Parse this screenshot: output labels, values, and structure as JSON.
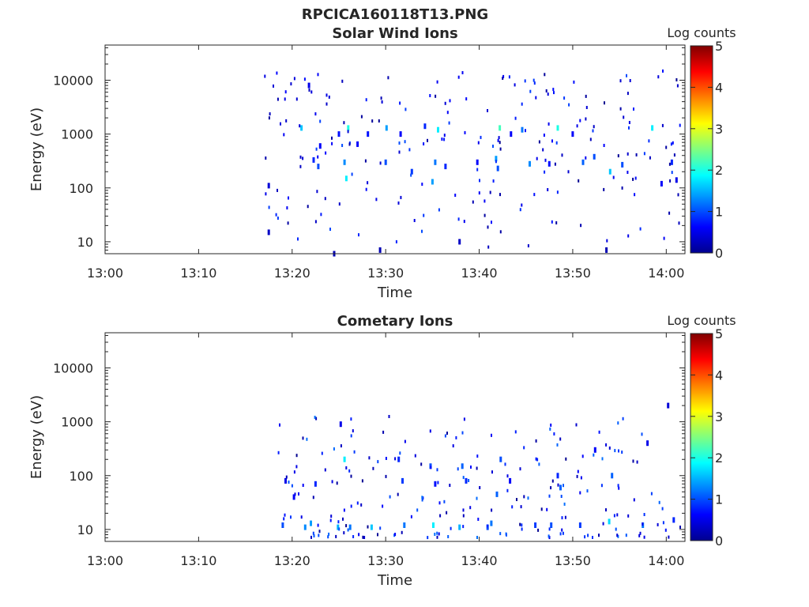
{
  "figure_title": "RPCICA160118T13.PNG",
  "colors": {
    "axis": "#262626",
    "colormap": [
      "#00008f",
      "#0000ff",
      "#00ffff",
      "#ffff00",
      "#ff0000",
      "#800000"
    ]
  },
  "chart_data": [
    {
      "type": "heatmap",
      "title": "Solar Wind Ions",
      "xlabel": "Time",
      "ylabel": "Energy (eV)",
      "colorbar_label": "Log counts",
      "x_range": [
        "13:00",
        "14:02"
      ],
      "y_scale": "log",
      "ylim": [
        6,
        45000
      ],
      "x_ticks": [
        "13:00",
        "13:10",
        "13:20",
        "13:30",
        "13:40",
        "13:50",
        "14:00"
      ],
      "y_ticks": [
        10,
        100,
        1000,
        10000
      ],
      "y_tick_labels": [
        "10",
        "100",
        "1000",
        "10000"
      ],
      "clim": [
        0,
        5
      ],
      "colorbar_ticks": [
        "0",
        "1",
        "2",
        "3",
        "4",
        "5"
      ],
      "data_start": "13:17",
      "grid": false,
      "cells": [
        [
          "13:17.5",
          15,
          0.3
        ],
        [
          "13:17.5",
          110,
          0.4
        ],
        [
          "13:21.0",
          1300,
          1.6
        ],
        [
          "13:21.8",
          8000,
          0.5
        ],
        [
          "13:22.3",
          330,
          0.8
        ],
        [
          "13:22.8",
          250,
          1.0
        ],
        [
          "13:23.0",
          600,
          0.6
        ],
        [
          "13:24.5",
          6,
          0.2
        ],
        [
          "13:25.0",
          1000,
          0.7
        ],
        [
          "13:25.6",
          300,
          1.3
        ],
        [
          "13:25.8",
          150,
          1.8
        ],
        [
          "13:26.0",
          1300,
          2.0
        ],
        [
          "13:27.0",
          650,
          0.6
        ],
        [
          "13:28.1",
          1000,
          0.7
        ],
        [
          "13:29.4",
          7,
          0.2
        ],
        [
          "13:30.0",
          300,
          1.0
        ],
        [
          "13:30.1",
          1300,
          1.4
        ],
        [
          "13:31.6",
          1000,
          0.6
        ],
        [
          "13:32.8",
          200,
          0.9
        ],
        [
          "13:34.2",
          1400,
          0.8
        ],
        [
          "13:35.0",
          130,
          1.4
        ],
        [
          "13:35.3",
          300,
          1.2
        ],
        [
          "13:35.6",
          1200,
          1.8
        ],
        [
          "13:36.4",
          250,
          0.8
        ],
        [
          "13:37.9",
          10,
          0.3
        ],
        [
          "13:39.8",
          300,
          0.6
        ],
        [
          "13:41.8",
          350,
          1.4
        ],
        [
          "13:42.0",
          230,
          1.0
        ],
        [
          "13:42.2",
          1300,
          2.2
        ],
        [
          "13:43.4",
          1000,
          0.6
        ],
        [
          "13:44.6",
          1200,
          1.2
        ],
        [
          "13:45.4",
          280,
          1.3
        ],
        [
          "13:47.5",
          280,
          0.7
        ],
        [
          "13:48.4",
          1300,
          2.0
        ],
        [
          "13:50.0",
          1000,
          0.6
        ],
        [
          "13:51.1",
          300,
          1.1
        ],
        [
          "13:52.3",
          380,
          1.0
        ],
        [
          "13:53.6",
          7,
          0.2
        ],
        [
          "13:54.0",
          200,
          1.6
        ],
        [
          "13:55.3",
          270,
          1.0
        ],
        [
          "13:58.5",
          1300,
          1.8
        ],
        [
          "13:59.5",
          120,
          0.6
        ],
        [
          "14:00.6",
          300,
          0.8
        ],
        [
          "14:01.1",
          140,
          0.5
        ]
      ]
    },
    {
      "type": "heatmap",
      "title": "Cometary Ions",
      "xlabel": "Time",
      "ylabel": "Energy (eV)",
      "colorbar_label": "Log counts",
      "x_range": [
        "13:00",
        "14:02"
      ],
      "y_scale": "log",
      "ylim": [
        6,
        45000
      ],
      "x_ticks": [
        "13:00",
        "13:10",
        "13:20",
        "13:30",
        "13:40",
        "13:50",
        "14:00"
      ],
      "y_ticks": [
        10,
        100,
        1000,
        10000
      ],
      "y_tick_labels": [
        "10",
        "100",
        "1000",
        "10000"
      ],
      "clim": [
        0,
        5
      ],
      "colorbar_ticks": [
        "0",
        "1",
        "2",
        "3",
        "4",
        "5"
      ],
      "data_start": "13:18.5",
      "grid": false,
      "cells": [
        [
          "13:19.0",
          12,
          1.0
        ],
        [
          "13:19.3",
          80,
          0.5
        ],
        [
          "13:20.2",
          40,
          0.6
        ],
        [
          "13:21.4",
          11,
          1.3
        ],
        [
          "13:22.0",
          13,
          1.4
        ],
        [
          "13:22.5",
          70,
          0.8
        ],
        [
          "13:24.9",
          11,
          1.5
        ],
        [
          "13:25.2",
          900,
          0.5
        ],
        [
          "13:25.6",
          200,
          1.8
        ],
        [
          "13:26.2",
          11,
          1.2
        ],
        [
          "13:28.5",
          11,
          1.6
        ],
        [
          "13:31.4",
          200,
          0.8
        ],
        [
          "13:31.8",
          80,
          0.9
        ],
        [
          "13:32.0",
          12,
          1.2
        ],
        [
          "13:34.8",
          150,
          1.0
        ],
        [
          "13:35.1",
          12,
          1.8
        ],
        [
          "13:35.3",
          70,
          0.7
        ],
        [
          "13:37.9",
          11,
          1.5
        ],
        [
          "13:38.2",
          150,
          1.1
        ],
        [
          "13:38.6",
          80,
          0.8
        ],
        [
          "13:40.9",
          11,
          1.0
        ],
        [
          "13:41.3",
          13,
          1.2
        ],
        [
          "13:41.9",
          45,
          1.1
        ],
        [
          "13:42.3",
          200,
          1.0
        ],
        [
          "13:43.3",
          80,
          0.6
        ],
        [
          "13:46.0",
          12,
          0.9
        ],
        [
          "13:47.7",
          12,
          1.0
        ],
        [
          "13:48.4",
          100,
          0.8
        ],
        [
          "13:48.7",
          60,
          1.1
        ],
        [
          "13:50.8",
          12,
          0.9
        ],
        [
          "13:52.4",
          300,
          0.6
        ],
        [
          "13:53.9",
          14,
          1.7
        ],
        [
          "13:54.2",
          100,
          1.1
        ],
        [
          "13:57.5",
          12,
          1.2
        ],
        [
          "13:58.0",
          400,
          0.5
        ],
        [
          "14:00.2",
          2000,
          0.4
        ],
        [
          "14:00.8",
          15,
          0.8
        ]
      ]
    }
  ]
}
